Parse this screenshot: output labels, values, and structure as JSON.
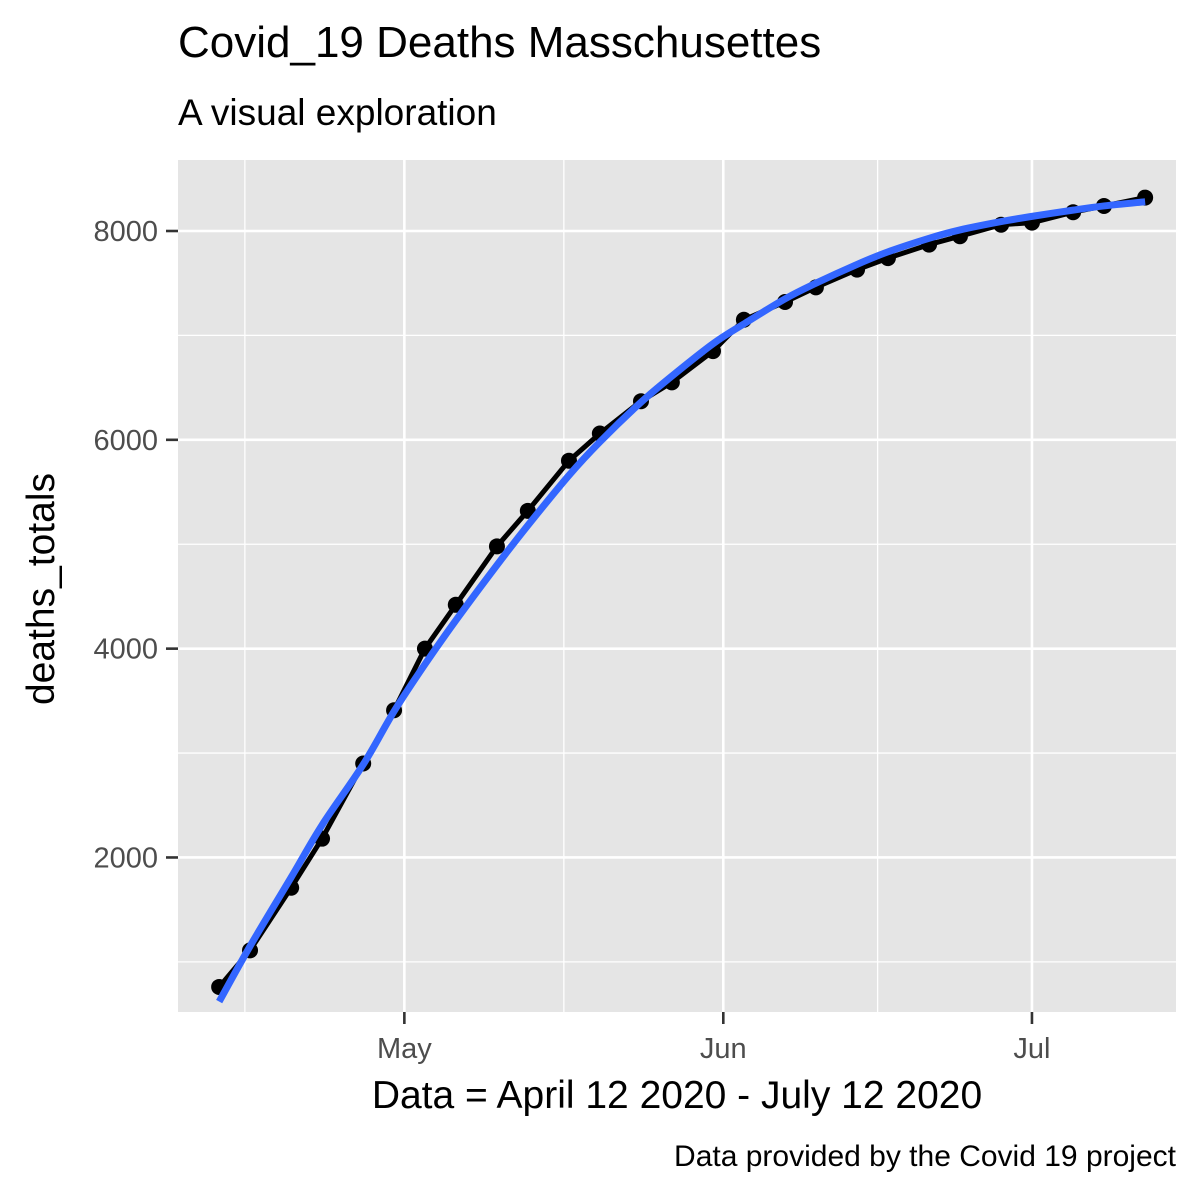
{
  "chart_data": {
    "type": "line",
    "title": "Covid_19 Deaths Masschusettes",
    "subtitle": "A visual exploration",
    "xlabel": "Data = April 12 2020 - July 12 2020",
    "ylabel": "deaths_totals",
    "caption": "Data provided by the Covid 19 project",
    "x_type": "date",
    "xlim": [
      "2020-04-09",
      "2020-07-15"
    ],
    "ylim": [
      520,
      8680
    ],
    "x_ticks": [
      {
        "date": "2020-05-01",
        "label": "May"
      },
      {
        "date": "2020-06-01",
        "label": "Jun"
      },
      {
        "date": "2020-07-01",
        "label": "Jul"
      }
    ],
    "y_ticks": [
      2000,
      4000,
      6000,
      8000
    ],
    "grid": true,
    "background": "#e5e5e5",
    "series": [
      {
        "style": "points-and-line",
        "color": "#000000",
        "x": [
          "2020-04-13",
          "2020-04-16",
          "2020-04-20",
          "2020-04-23",
          "2020-04-27",
          "2020-04-30",
          "2020-05-03",
          "2020-05-06",
          "2020-05-10",
          "2020-05-13",
          "2020-05-17",
          "2020-05-20",
          "2020-05-24",
          "2020-05-27",
          "2020-05-31",
          "2020-06-03",
          "2020-06-07",
          "2020-06-10",
          "2020-06-14",
          "2020-06-17",
          "2020-06-21",
          "2020-06-24",
          "2020-06-28",
          "2020-07-01",
          "2020-07-05",
          "2020-07-08",
          "2020-07-12"
        ],
        "y": [
          760,
          1110,
          1710,
          2180,
          2900,
          3410,
          4000,
          4420,
          4980,
          5320,
          5800,
          6060,
          6370,
          6550,
          6850,
          7150,
          7320,
          7460,
          7630,
          7740,
          7870,
          7950,
          8060,
          8080,
          8180,
          8240,
          8320
        ]
      },
      {
        "style": "smooth-line",
        "color": "#3366ff",
        "x": [
          "2020-04-13",
          "2020-04-16",
          "2020-04-20",
          "2020-04-23",
          "2020-04-27",
          "2020-04-30",
          "2020-05-03",
          "2020-05-06",
          "2020-05-10",
          "2020-05-13",
          "2020-05-17",
          "2020-05-20",
          "2020-05-24",
          "2020-05-27",
          "2020-05-31",
          "2020-06-03",
          "2020-06-07",
          "2020-06-10",
          "2020-06-14",
          "2020-06-17",
          "2020-06-21",
          "2020-06-24",
          "2020-06-28",
          "2020-07-01",
          "2020-07-05",
          "2020-07-08",
          "2020-07-12"
        ],
        "y": [
          620,
          1150,
          1810,
          2310,
          2890,
          3400,
          3850,
          4270,
          4800,
          5180,
          5660,
          5980,
          6360,
          6610,
          6920,
          7110,
          7350,
          7500,
          7680,
          7800,
          7930,
          8010,
          8090,
          8140,
          8200,
          8240,
          8280
        ]
      }
    ]
  }
}
